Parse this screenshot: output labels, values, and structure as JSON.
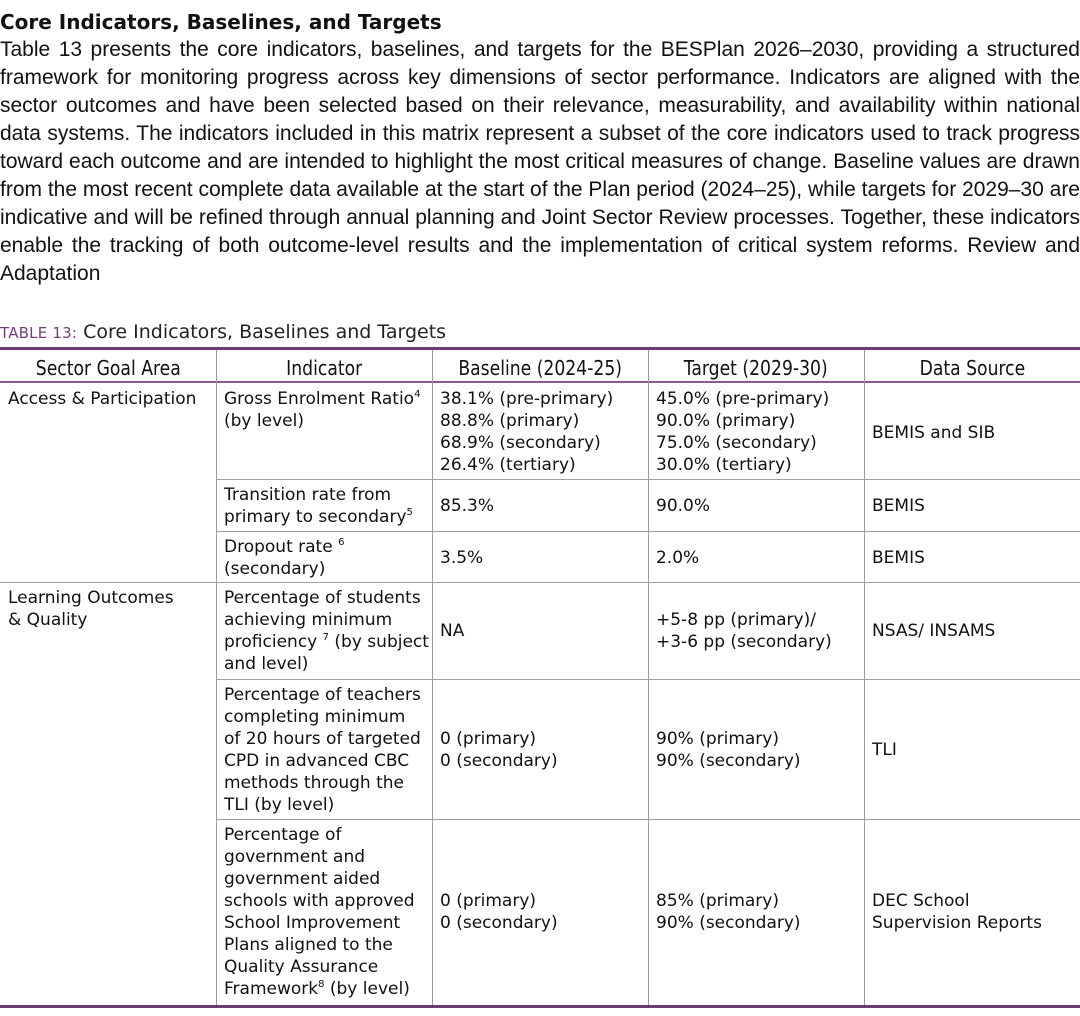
{
  "section": {
    "heading": "Core Indicators, Baselines, and Targets",
    "paragraph": "Table 13 presents the core indicators, baselines, and targets for the BESPlan 2026–2030, providing a structured framework for monitoring progress across key dimensions of sector performance. Indicators are aligned with the sector outcomes and have been selected based on their relevance, measurability, and availability within national data systems. The indicators included in this matrix represent a subset of the core indicators used to track progress toward each outcome and are intended to highlight the most critical measures of change. Baseline values are drawn from the most recent complete data available at the start of the Plan period (2024–25), while targets for 2029–30 are indicative and will be refined through annual planning and Joint Sector Review processes. Together, these indicators enable the tracking of both outcome-level results and the implementation of critical system reforms. Review and Adaptation"
  },
  "caption": {
    "label": "TABLE 13:",
    "text": " Core Indicators, Baselines and Targets"
  },
  "table": {
    "headers": [
      "Sector Goal Area",
      "Indicator",
      "Baseline (2024-25)",
      "Target (2029-30)",
      "Data Source"
    ],
    "goal_areas": [
      {
        "lines": [
          "Access & Participation"
        ]
      },
      {
        "lines": [
          "Learning Outcomes",
          "& Quality"
        ]
      }
    ],
    "rows": [
      {
        "indicator": [
          [
            "Gross Enrolment Ratio",
            "4"
          ],
          [
            "(by level)",
            ""
          ]
        ],
        "baseline": [
          "38.1% (pre-primary)",
          "88.8% (primary)",
          "68.9% (secondary)",
          "26.4% (tertiary)"
        ],
        "target": [
          "45.0% (pre-primary)",
          "90.0% (primary)",
          "75.0% (secondary)",
          "30.0% (tertiary)"
        ],
        "source": [
          "BEMIS and SIB"
        ]
      },
      {
        "indicator": [
          [
            "Transition rate from",
            ""
          ],
          [
            "primary to secondary",
            "5"
          ]
        ],
        "baseline": [
          "85.3%"
        ],
        "target": [
          "90.0%"
        ],
        "source": [
          "BEMIS"
        ]
      },
      {
        "indicator": [
          [
            "Dropout rate ",
            "6"
          ],
          [
            "(secondary)",
            ""
          ]
        ],
        "baseline": [
          "3.5%"
        ],
        "target": [
          "2.0%"
        ],
        "source": [
          "BEMIS"
        ]
      },
      {
        "indicator": [
          [
            "Percentage of students",
            ""
          ],
          [
            "achieving minimum",
            ""
          ],
          [
            "proficiency ",
            "7"
          ],
          [
            "and level)",
            ""
          ]
        ],
        "indicator_inline_suffix": " (by subject",
        "baseline": [
          "NA"
        ],
        "target": [
          "+5-8 pp (primary)/",
          "+3-6 pp (secondary)"
        ],
        "source": [
          "NSAS/ INSAMS"
        ]
      },
      {
        "indicator": [
          [
            "Percentage of teachers",
            ""
          ],
          [
            "completing minimum",
            ""
          ],
          [
            "of 20 hours of targeted",
            ""
          ],
          [
            "CPD in advanced CBC",
            ""
          ],
          [
            "methods through the",
            ""
          ],
          [
            "TLI (by level)",
            ""
          ]
        ],
        "baseline": [
          "0 (primary)",
          "0 (secondary)"
        ],
        "target": [
          "90% (primary)",
          "90% (secondary)"
        ],
        "source": [
          "TLI"
        ]
      },
      {
        "indicator": [
          [
            "Percentage of",
            ""
          ],
          [
            "government and",
            ""
          ],
          [
            "government aided",
            ""
          ],
          [
            "schools with approved",
            ""
          ],
          [
            "School Improvement",
            ""
          ],
          [
            "Plans aligned to the",
            ""
          ],
          [
            "Quality Assurance",
            ""
          ],
          [
            "Framework",
            "8"
          ]
        ],
        "indicator_last_suffix": " (by level)",
        "baseline": [
          "0 (primary)",
          "0 (secondary)"
        ],
        "target": [
          "85% (primary)",
          "90% (secondary)"
        ],
        "source": [
          "DEC School",
          "Supervision Reports"
        ]
      }
    ]
  },
  "colors": {
    "rule": "#6e3a74",
    "header_rule": "#8b5a8e",
    "caption_label": "#7a3a7c"
  }
}
